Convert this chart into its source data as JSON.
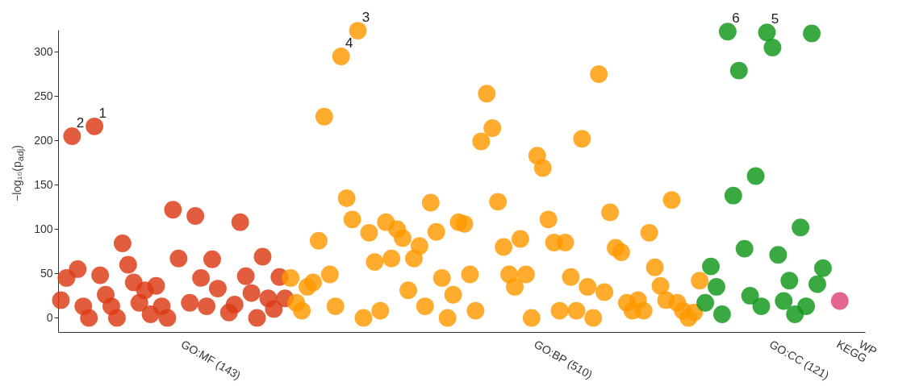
{
  "chart_data": {
    "type": "scatter",
    "ylabel": "−log₁₀(p$_{adj}$)",
    "marker": "circle",
    "legend": false,
    "grid": false,
    "ylim": [
      -16,
      325
    ],
    "yticks": [
      0,
      50,
      100,
      150,
      200,
      250,
      300
    ],
    "categories": [
      null,
      null,
      null,
      null,
      null,
      null,
      null,
      null,
      null,
      null,
      null,
      null,
      null,
      null,
      null,
      null,
      null,
      null,
      null,
      null,
      null,
      null,
      "GO:MF (143)",
      null,
      null,
      null,
      null,
      null,
      null,
      null,
      null,
      null,
      null,
      null,
      null,
      null,
      null,
      null,
      null,
      null,
      null,
      null,
      null,
      null,
      null,
      null,
      null,
      null,
      null,
      null,
      null,
      null,
      null,
      null,
      null,
      null,
      null,
      null,
      null,
      null,
      null,
      null,
      null,
      null,
      null,
      null,
      null,
      null,
      null,
      null,
      null,
      null,
      null,
      null,
      null,
      null,
      null,
      null,
      null,
      null,
      null,
      null,
      null,
      null,
      null,
      "GO:BP (510)",
      null,
      null,
      null,
      null,
      null,
      null,
      null,
      null,
      null,
      null,
      null,
      null,
      null,
      null,
      null,
      null,
      null,
      null,
      null,
      null,
      null,
      null,
      null,
      null,
      null,
      null,
      null,
      null,
      null,
      null,
      null,
      null,
      null,
      null,
      null,
      null,
      null,
      null,
      null,
      null,
      null,
      "GO:CC (121)",
      null,
      null,
      null,
      null,
      null,
      null,
      null,
      null,
      null,
      null,
      null,
      "KEGG",
      null,
      null,
      null,
      "WP"
    ],
    "series": [
      {
        "color": "#dc3912",
        "values": [
          20,
          45,
          205,
          55,
          13,
          0,
          216,
          48,
          26,
          13,
          0,
          84,
          60,
          40,
          17,
          31,
          4,
          36,
          13,
          0,
          122,
          67,
          null,
          17,
          115,
          45,
          13,
          66,
          33,
          null,
          6,
          15,
          108,
          47,
          28,
          0,
          69,
          22,
          10,
          46,
          22,
          null,
          null,
          null,
          null,
          null,
          null,
          null,
          null,
          null,
          null,
          null,
          null,
          null,
          null,
          null,
          null,
          null,
          null,
          null,
          null,
          null,
          null,
          null,
          null,
          null,
          null,
          null,
          null,
          null,
          null,
          null,
          null,
          null,
          null,
          null,
          null,
          null,
          null,
          null,
          null,
          null,
          null,
          null,
          null,
          null,
          null,
          null,
          null,
          null,
          null,
          null,
          null,
          null,
          null,
          null,
          null,
          null,
          null,
          null,
          null,
          null,
          null,
          null,
          null,
          null,
          null,
          null,
          null,
          null,
          null,
          null,
          null,
          null,
          null,
          null,
          null,
          null,
          null,
          null,
          null,
          null,
          null,
          null,
          null,
          null,
          null,
          null,
          null,
          null,
          null,
          null,
          null,
          null,
          null,
          null,
          null,
          null,
          null,
          null,
          null,
          null,
          null,
          null
        ]
      },
      {
        "color": "#ff9900",
        "values": [
          null,
          null,
          null,
          null,
          null,
          null,
          null,
          null,
          null,
          null,
          null,
          null,
          null,
          null,
          null,
          null,
          null,
          null,
          null,
          null,
          null,
          null,
          null,
          null,
          null,
          null,
          null,
          null,
          null,
          null,
          null,
          null,
          null,
          null,
          null,
          null,
          null,
          null,
          null,
          null,
          null,
          45,
          17,
          8,
          35,
          40,
          87,
          227,
          49,
          13,
          295,
          135,
          111,
          324,
          0,
          96,
          63,
          8,
          108,
          67,
          100,
          90,
          31,
          67,
          81,
          13,
          130,
          97,
          45,
          0,
          26,
          108,
          106,
          49,
          8,
          199,
          253,
          214,
          131,
          80,
          49,
          35,
          89,
          49,
          0,
          183,
          169,
          111,
          85,
          8,
          85,
          46,
          8,
          202,
          35,
          0,
          275,
          29,
          119,
          79,
          74,
          17,
          8,
          20,
          8,
          96,
          57,
          36,
          20,
          133,
          17,
          8,
          0,
          6,
          42,
          null,
          null,
          null,
          null,
          null,
          null,
          null,
          null,
          null,
          null,
          null,
          null,
          null,
          null,
          null,
          null,
          null,
          null,
          null,
          null,
          null,
          null,
          null,
          null,
          null,
          null,
          null,
          null,
          null
        ]
      },
      {
        "color": "#109618",
        "values": [
          null,
          null,
          null,
          null,
          null,
          null,
          null,
          null,
          null,
          null,
          null,
          null,
          null,
          null,
          null,
          null,
          null,
          null,
          null,
          null,
          null,
          null,
          null,
          null,
          null,
          null,
          null,
          null,
          null,
          null,
          null,
          null,
          null,
          null,
          null,
          null,
          null,
          null,
          null,
          null,
          null,
          null,
          null,
          null,
          null,
          null,
          null,
          null,
          null,
          null,
          null,
          null,
          null,
          null,
          null,
          null,
          null,
          null,
          null,
          null,
          null,
          null,
          null,
          null,
          null,
          null,
          null,
          null,
          null,
          null,
          null,
          null,
          null,
          null,
          null,
          null,
          null,
          null,
          null,
          null,
          null,
          null,
          null,
          null,
          null,
          null,
          null,
          null,
          null,
          null,
          null,
          null,
          null,
          null,
          null,
          null,
          null,
          null,
          null,
          null,
          null,
          null,
          null,
          null,
          null,
          null,
          null,
          null,
          null,
          null,
          null,
          null,
          null,
          null,
          null,
          17,
          58,
          35,
          4,
          323,
          138,
          279,
          78,
          25,
          160,
          13,
          322,
          305,
          71,
          19,
          42,
          4,
          102,
          13,
          321,
          38,
          56,
          null,
          null,
          null,
          null,
          null,
          null,
          null
        ]
      },
      {
        "color": "#dd4477",
        "values": [
          null,
          null,
          null,
          null,
          null,
          null,
          null,
          null,
          null,
          null,
          null,
          null,
          null,
          null,
          null,
          null,
          null,
          null,
          null,
          null,
          null,
          null,
          null,
          null,
          null,
          null,
          null,
          null,
          null,
          null,
          null,
          null,
          null,
          null,
          null,
          null,
          null,
          null,
          null,
          null,
          null,
          null,
          null,
          null,
          null,
          null,
          null,
          null,
          null,
          null,
          null,
          null,
          null,
          null,
          null,
          null,
          null,
          null,
          null,
          null,
          null,
          null,
          null,
          null,
          null,
          null,
          null,
          null,
          null,
          null,
          null,
          null,
          null,
          null,
          null,
          null,
          null,
          null,
          null,
          null,
          null,
          null,
          null,
          null,
          null,
          null,
          null,
          null,
          null,
          null,
          null,
          null,
          null,
          null,
          null,
          null,
          null,
          null,
          null,
          null,
          null,
          null,
          null,
          null,
          null,
          null,
          null,
          null,
          null,
          null,
          null,
          null,
          null,
          null,
          null,
          null,
          null,
          null,
          null,
          null,
          null,
          null,
          null,
          null,
          null,
          null,
          null,
          null,
          null,
          null,
          null,
          null,
          null,
          null,
          null,
          null,
          null,
          null,
          null,
          19,
          null,
          null,
          null,
          null
        ]
      }
    ],
    "annotations": [
      {
        "text": "1",
        "y": 216
      },
      {
        "text": "2",
        "y": 205
      },
      {
        "text": "3",
        "y": 324
      },
      {
        "text": "4",
        "y": 295
      },
      {
        "text": "5",
        "y": 322
      },
      {
        "text": "6",
        "y": 323
      }
    ]
  }
}
